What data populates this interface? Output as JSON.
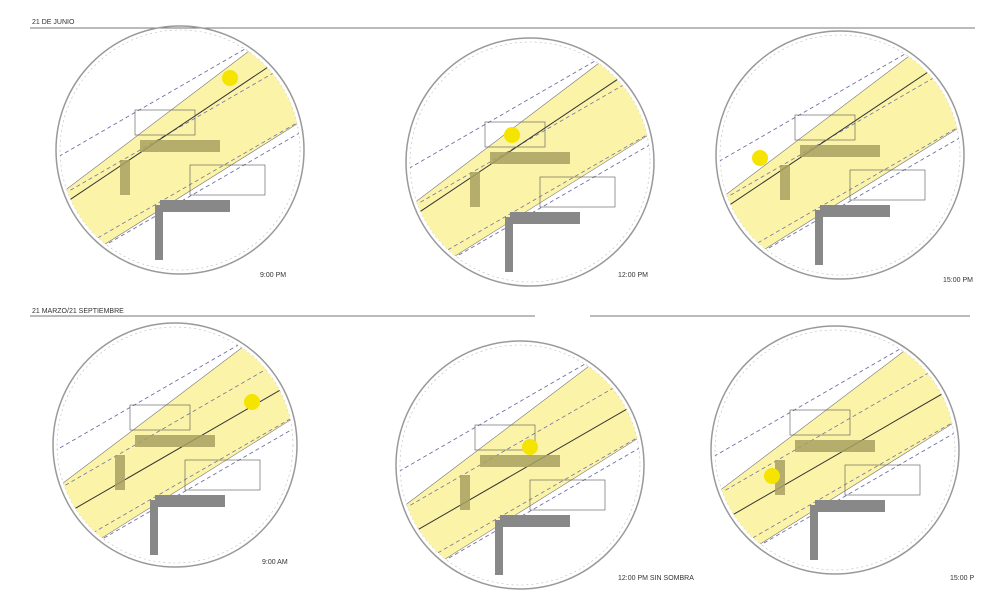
{
  "sections": [
    {
      "title": "21 DE JUNIO",
      "panels": [
        {
          "label": "9:00 PM"
        },
        {
          "label": "12:00 PM"
        },
        {
          "label": "15:00 PM"
        }
      ]
    },
    {
      "title": "21 MARZO/21 SEPTIEMBRE",
      "panels": [
        {
          "label": "9:00 AM"
        },
        {
          "label": "12:00 PM SIN SOMBRA"
        },
        {
          "label": "15:00 P"
        }
      ]
    }
  ]
}
